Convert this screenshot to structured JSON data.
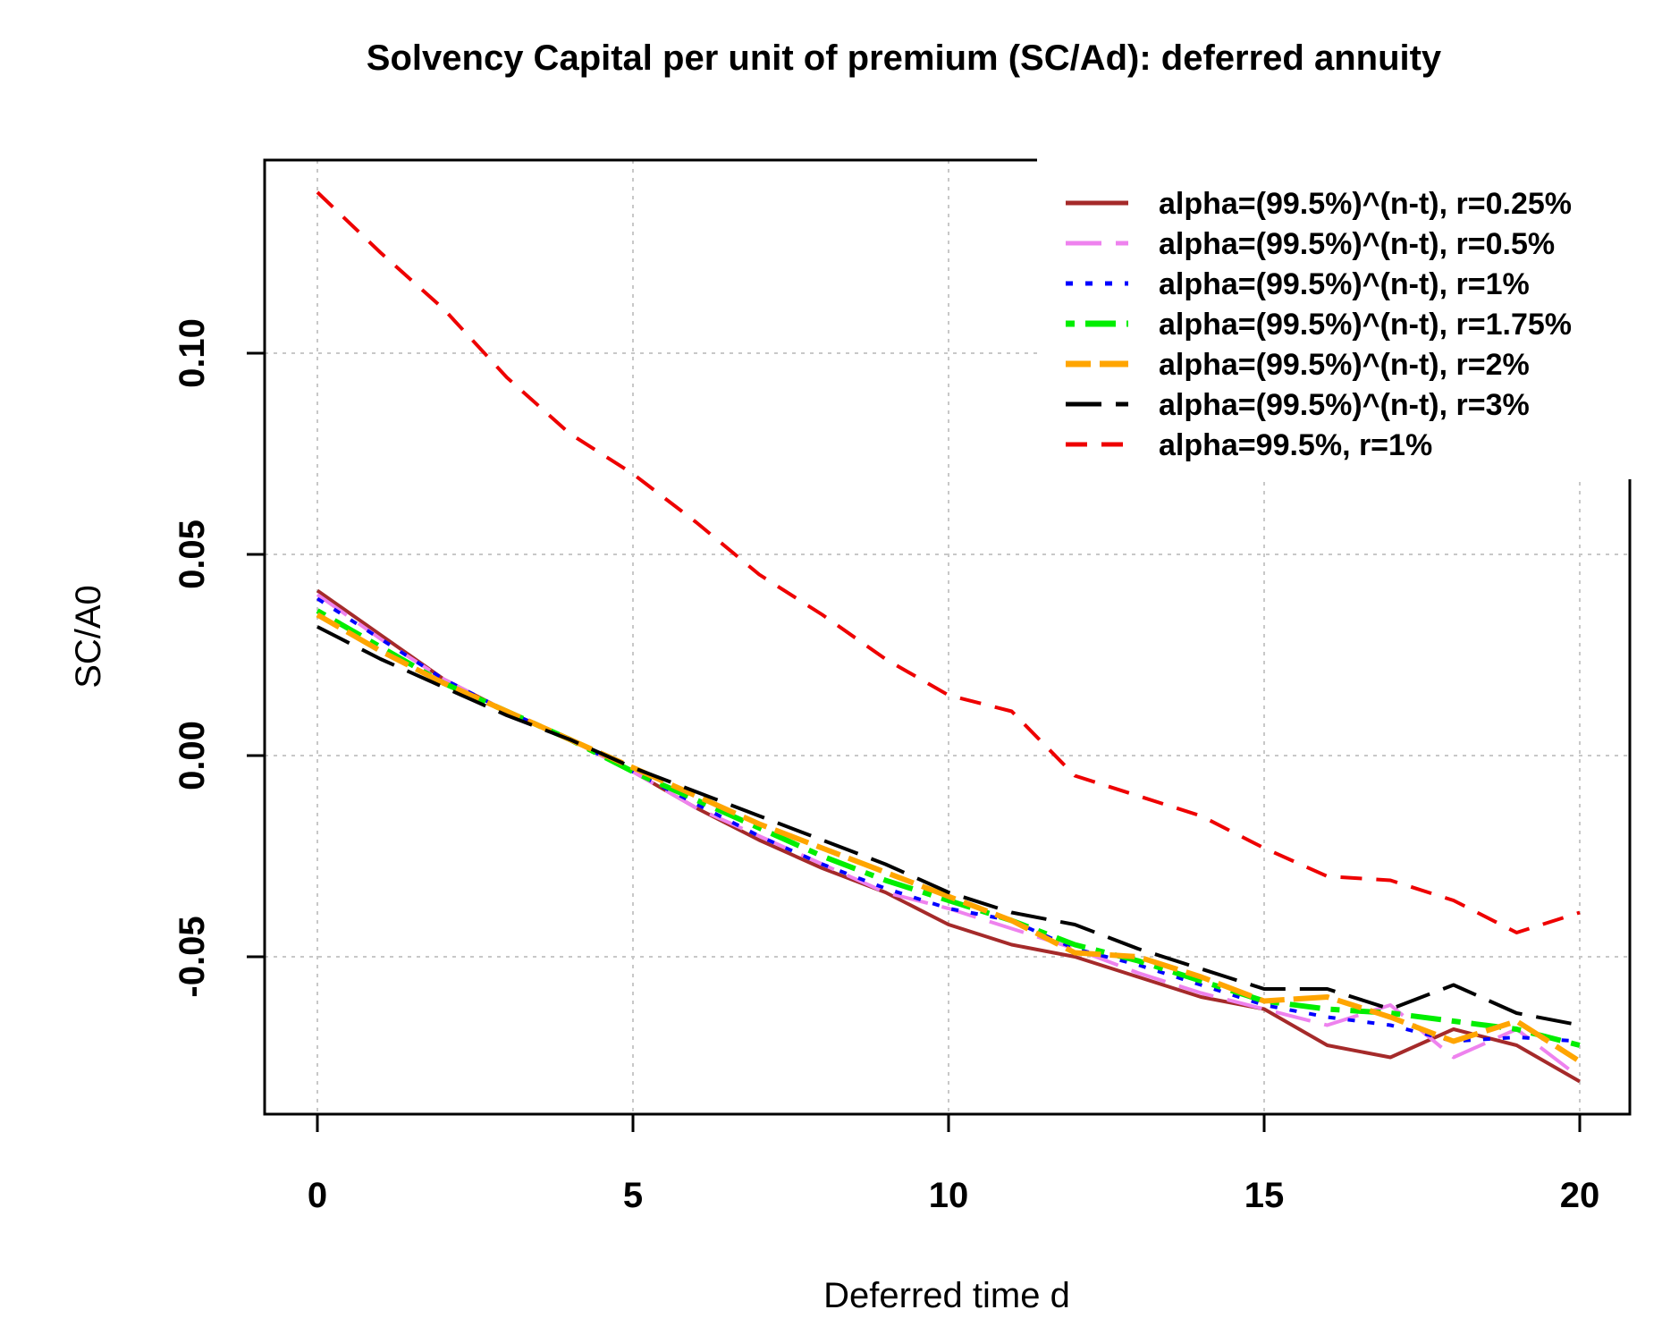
{
  "chart_data": {
    "type": "line",
    "title": "Solvency Capital per unit of premium (SC/Ad): deferred annuity",
    "xlabel": "Deferred time d",
    "ylabel": "SC/A0",
    "xlim": [
      0,
      20
    ],
    "ylim": [
      -0.09,
      0.15
    ],
    "x_ticks": [
      0,
      5,
      10,
      15,
      20
    ],
    "x_tick_labels": [
      "0",
      "5",
      "10",
      "15",
      "20"
    ],
    "y_ticks": [
      -0.05,
      0.0,
      0.05,
      0.1
    ],
    "y_tick_labels": [
      "-0.05",
      "0.00",
      "0.05",
      "0.10"
    ],
    "grid": true,
    "legend_position": "top-right",
    "x": [
      0,
      1,
      2,
      3,
      4,
      5,
      6,
      7,
      8,
      9,
      10,
      11,
      12,
      13,
      14,
      15,
      16,
      17,
      18,
      19,
      20
    ],
    "series": [
      {
        "name": "alpha=(99.5%)^(n-t), r=0.25%",
        "color": "#a52a2a",
        "dash": "solid",
        "values": [
          0.041,
          0.03,
          0.019,
          0.011,
          0.004,
          -0.004,
          -0.013,
          -0.021,
          -0.028,
          -0.034,
          -0.042,
          -0.047,
          -0.05,
          -0.055,
          -0.06,
          -0.063,
          -0.072,
          -0.075,
          -0.068,
          -0.072,
          -0.081
        ]
      },
      {
        "name": "alpha=(99.5%)^(n-t), r=0.5%",
        "color": "#ee82ee",
        "dash": "longdash",
        "values": [
          0.04,
          0.029,
          0.019,
          0.011,
          0.004,
          -0.004,
          -0.013,
          -0.02,
          -0.027,
          -0.034,
          -0.038,
          -0.043,
          -0.048,
          -0.054,
          -0.059,
          -0.063,
          -0.067,
          -0.062,
          -0.075,
          -0.068,
          -0.08
        ]
      },
      {
        "name": "alpha=(99.5%)^(n-t), r=1%",
        "color": "#0000ff",
        "dash": "dotted",
        "values": [
          0.039,
          0.029,
          0.019,
          0.011,
          0.004,
          -0.004,
          -0.012,
          -0.02,
          -0.027,
          -0.033,
          -0.038,
          -0.041,
          -0.048,
          -0.052,
          -0.057,
          -0.062,
          -0.065,
          -0.067,
          -0.071,
          -0.07,
          -0.071
        ]
      },
      {
        "name": "alpha=(99.5%)^(n-t), r=1.75%",
        "color": "#00ee00",
        "dash": "dotdash",
        "values": [
          0.036,
          0.027,
          0.018,
          0.011,
          0.004,
          -0.004,
          -0.011,
          -0.018,
          -0.025,
          -0.031,
          -0.036,
          -0.041,
          -0.047,
          -0.051,
          -0.056,
          -0.061,
          -0.063,
          -0.064,
          -0.066,
          -0.068,
          -0.072
        ]
      },
      {
        "name": "alpha=(99.5%)^(n-t), r=2%",
        "color": "#ffa500",
        "dash": "twodash",
        "values": [
          0.035,
          0.026,
          0.018,
          0.011,
          0.004,
          -0.003,
          -0.01,
          -0.017,
          -0.023,
          -0.029,
          -0.035,
          -0.041,
          -0.049,
          -0.05,
          -0.055,
          -0.061,
          -0.06,
          -0.065,
          -0.071,
          -0.066,
          -0.076
        ]
      },
      {
        "name": "alpha=(99.5%)^(n-t), r=3%",
        "color": "#000000",
        "dash": "longdash",
        "values": [
          0.032,
          0.024,
          0.017,
          0.01,
          0.004,
          -0.003,
          -0.009,
          -0.015,
          -0.021,
          -0.027,
          -0.034,
          -0.039,
          -0.042,
          -0.048,
          -0.053,
          -0.058,
          -0.058,
          -0.063,
          -0.057,
          -0.064,
          -0.067
        ]
      },
      {
        "name": "alpha=99.5%, r=1%",
        "color": "#ee0000",
        "dash": "dashed",
        "values": [
          0.14,
          0.125,
          0.111,
          0.094,
          0.08,
          0.07,
          0.058,
          0.045,
          0.035,
          0.024,
          0.015,
          0.011,
          -0.005,
          -0.01,
          -0.015,
          -0.023,
          -0.03,
          -0.031,
          -0.036,
          -0.044,
          -0.039
        ]
      }
    ]
  }
}
